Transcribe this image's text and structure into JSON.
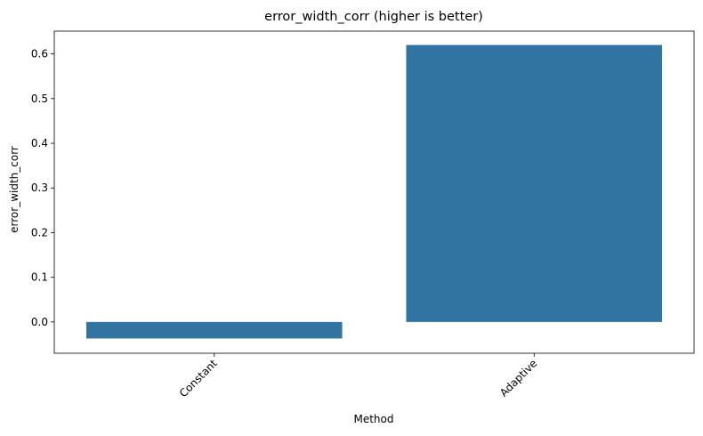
{
  "chart_data": {
    "type": "bar",
    "title": "error_width_corr (higher is better)",
    "xlabel": "Method",
    "ylabel": "error_width_corr",
    "categories": [
      "Constant",
      "Adaptive"
    ],
    "values": [
      -0.037,
      0.62
    ],
    "ylim": [
      -0.07,
      0.651
    ],
    "yticks": [
      0.0,
      0.1,
      0.2,
      0.3,
      0.4,
      0.5,
      0.6
    ],
    "ytick_labels": [
      "0.0",
      "0.1",
      "0.2",
      "0.3",
      "0.4",
      "0.5",
      "0.6"
    ],
    "xtick_rotation": "45 degrees",
    "bar_color": "#3274a1",
    "grid": false,
    "legend": "none"
  }
}
